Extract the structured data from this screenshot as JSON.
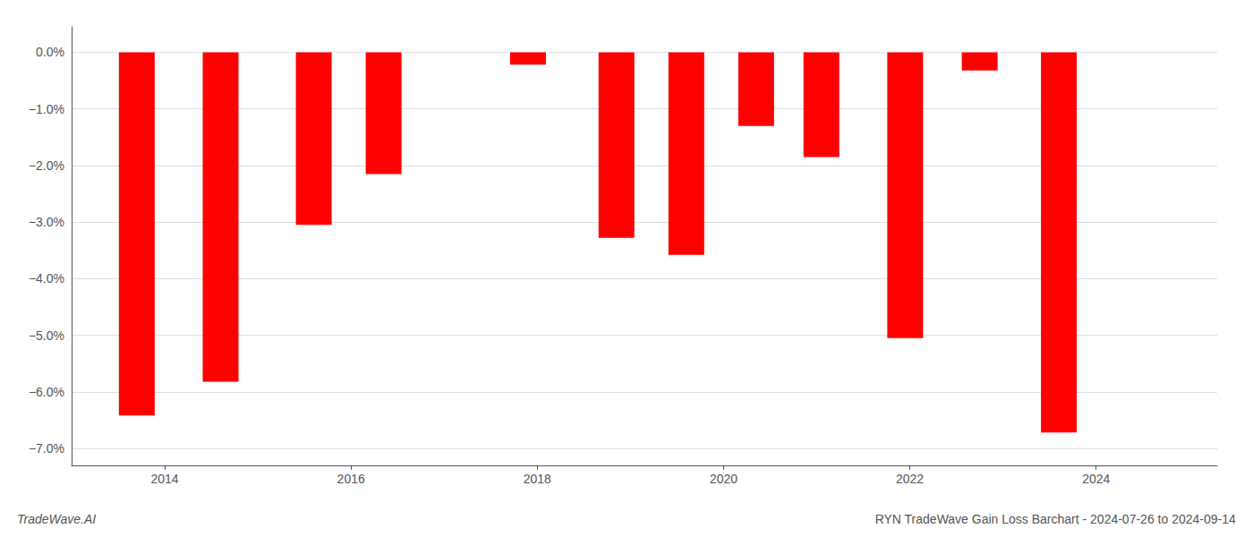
{
  "chart_data": {
    "type": "bar",
    "title": "RYN TradeWave Gain Loss Barchart - 2024-07-26 to 2024-09-14",
    "annotations": [
      "TradeWave.AI"
    ],
    "x": [
      2013.7,
      2014.6,
      2015.6,
      2016.35,
      2017.9,
      2018.85,
      2019.6,
      2020.35,
      2021.05,
      2021.95,
      2022.75,
      2023.6
    ],
    "values": [
      -6.42,
      -5.82,
      -3.05,
      -2.15,
      -0.22,
      -3.28,
      -3.58,
      -1.3,
      -1.85,
      -5.05,
      -0.32,
      -6.72
    ],
    "color": "#ff0000",
    "xlim": [
      2013.0,
      2025.3
    ],
    "xticks": [
      2014,
      2016,
      2018,
      2020,
      2022,
      2024
    ],
    "ylim": [
      -7.3,
      0.45
    ],
    "yticks": [
      {
        "value": 0.0,
        "label": "0.0%"
      },
      {
        "value": -1.0,
        "label": "−1.0%"
      },
      {
        "value": -2.0,
        "label": "−2.0%"
      },
      {
        "value": -3.0,
        "label": "−3.0%"
      },
      {
        "value": -4.0,
        "label": "−4.0%"
      },
      {
        "value": -5.0,
        "label": "−5.0%"
      },
      {
        "value": -6.0,
        "label": "−6.0%"
      },
      {
        "value": -7.0,
        "label": "−7.0%"
      }
    ],
    "grid": true
  }
}
